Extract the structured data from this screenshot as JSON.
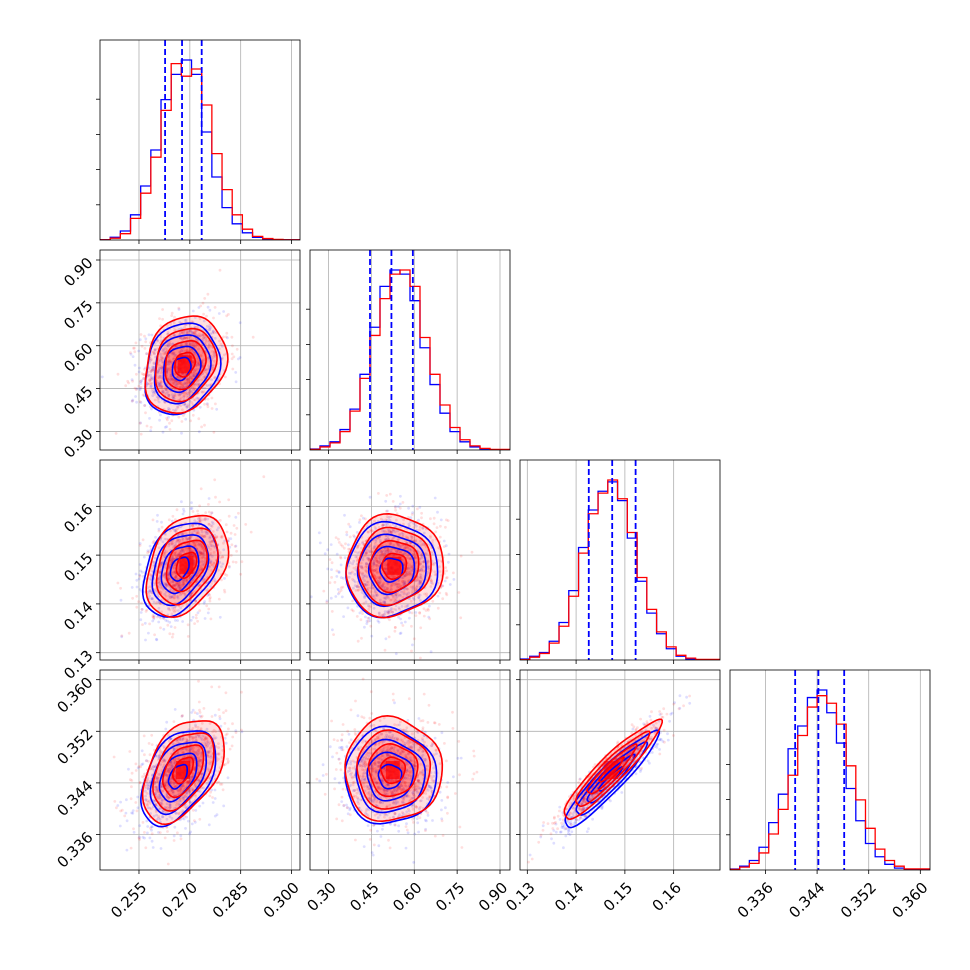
{
  "colors": {
    "series_a": "#0000ff",
    "series_b": "#ff0000",
    "grid": "#b0b0b0",
    "frame": "#000000"
  },
  "chart_data": {
    "type": "corner",
    "grid": true,
    "parameters": [
      {
        "ticks": [
          0.255,
          0.27,
          0.285,
          0.3
        ],
        "tick_labels": [
          "0.255",
          "0.270",
          "0.285",
          "0.300"
        ],
        "range": [
          0.2435,
          0.3025
        ],
        "quantiles": [
          0.2627,
          0.2677,
          0.2735
        ],
        "hist": {
          "edges": [
            0.2435,
            0.2465,
            0.2495,
            0.2525,
            0.2555,
            0.2585,
            0.2615,
            0.2645,
            0.2675,
            0.2705,
            0.2735,
            0.2765,
            0.2795,
            0.2825,
            0.2855,
            0.2885,
            0.2915,
            0.2945,
            0.2975,
            0.3025
          ],
          "series_a": [
            0.2,
            1.5,
            5,
            14,
            30,
            50,
            78,
            92,
            100,
            92,
            60,
            35,
            18,
            9,
            4,
            1.5,
            0.5,
            0.2,
            0.1
          ],
          "series_b": [
            0.1,
            1,
            3.5,
            12,
            26,
            46,
            72,
            98,
            91,
            95,
            75,
            48,
            28,
            14,
            6,
            2,
            0.8,
            0.3,
            0.1
          ]
        }
      },
      {
        "ticks": [
          0.3,
          0.45,
          0.6,
          0.75,
          0.9
        ],
        "tick_labels": [
          "0.30",
          "0.45",
          "0.60",
          "0.75",
          "0.90"
        ],
        "range": [
          0.235,
          0.935
        ],
        "quantiles": [
          0.445,
          0.52,
          0.595
        ],
        "hist": {
          "edges": [
            0.235,
            0.27,
            0.305,
            0.34,
            0.375,
            0.41,
            0.445,
            0.48,
            0.515,
            0.55,
            0.585,
            0.62,
            0.655,
            0.69,
            0.725,
            0.76,
            0.795,
            0.83,
            0.865,
            0.935
          ],
          "series_a": [
            0.5,
            2,
            4,
            10,
            20,
            37,
            60,
            80,
            88,
            86,
            73,
            50,
            32,
            18,
            9,
            4,
            1.5,
            0.5,
            0.2
          ],
          "series_b": [
            0.3,
            1.5,
            3.5,
            9,
            19,
            35,
            56,
            74,
            86,
            88,
            80,
            55,
            37,
            22,
            11,
            5,
            2,
            0.8,
            0.3
          ]
        }
      },
      {
        "ticks": [
          0.13,
          0.14,
          0.15,
          0.16
        ],
        "tick_labels": [
          "0.13",
          "0.14",
          "0.15",
          "0.16"
        ],
        "range": [
          0.1285,
          0.1695
        ],
        "quantiles": [
          0.1426,
          0.1474,
          0.1522
        ],
        "hist": {
          "edges": [
            0.1285,
            0.1305,
            0.1325,
            0.1345,
            0.1365,
            0.1385,
            0.1405,
            0.1425,
            0.1445,
            0.1465,
            0.1485,
            0.1505,
            0.1525,
            0.1545,
            0.1565,
            0.1585,
            0.1605,
            0.1625,
            0.1645,
            0.1695
          ],
          "series_a": [
            0.5,
            2,
            4,
            10,
            20,
            37,
            60,
            80,
            90,
            95,
            85,
            65,
            42,
            25,
            14,
            6,
            2,
            0.5,
            0.2
          ],
          "series_b": [
            0.2,
            1.5,
            3.5,
            9,
            18,
            34,
            57,
            78,
            89,
            96,
            86,
            68,
            44,
            27,
            15,
            7,
            2.5,
            1,
            0.3
          ]
        }
      },
      {
        "ticks": [
          0.336,
          0.344,
          0.352,
          0.36
        ],
        "tick_labels": [
          "0.336",
          "0.344",
          "0.352",
          "0.360"
        ],
        "range": [
          0.3305,
          0.3615
        ],
        "quantiles": [
          0.3406,
          0.3442,
          0.3482
        ],
        "hist": {
          "edges": [
            0.3305,
            0.332,
            0.3335,
            0.335,
            0.3365,
            0.338,
            0.3395,
            0.341,
            0.3425,
            0.344,
            0.3455,
            0.347,
            0.3485,
            0.35,
            0.3515,
            0.353,
            0.3545,
            0.356,
            0.3575,
            0.3615
          ],
          "series_a": [
            0.5,
            2,
            5,
            12,
            25,
            40,
            64,
            76,
            91,
            95,
            83,
            67,
            43,
            26,
            14,
            7,
            3,
            1,
            0.3
          ],
          "series_b": [
            0.3,
            1.5,
            3.5,
            9,
            19,
            32,
            50,
            71,
            86,
            92,
            88,
            77,
            55,
            37,
            22,
            11,
            5,
            2,
            0.6
          ]
        }
      }
    ],
    "pairs": [
      {
        "row": 1,
        "col": 0,
        "corr": 0.2,
        "series_a": {
          "center": [
            0.2675,
            0.52
          ],
          "sd": [
            0.0055,
            0.08
          ]
        },
        "series_b": {
          "center": [
            0.2685,
            0.535
          ],
          "sd": [
            0.006,
            0.085
          ]
        }
      },
      {
        "row": 2,
        "col": 0,
        "corr": 0.35,
        "series_a": {
          "center": [
            0.267,
            0.1472
          ],
          "sd": [
            0.0055,
            0.0048
          ]
        },
        "series_b": {
          "center": [
            0.269,
            0.148
          ],
          "sd": [
            0.006,
            0.0052
          ]
        }
      },
      {
        "row": 2,
        "col": 1,
        "corr": 0.05,
        "series_a": {
          "center": [
            0.52,
            0.147
          ],
          "sd": [
            0.08,
            0.0048
          ]
        },
        "series_b": {
          "center": [
            0.53,
            0.1478
          ],
          "sd": [
            0.085,
            0.0052
          ]
        }
      },
      {
        "row": 3,
        "col": 0,
        "corr": 0.45,
        "series_a": {
          "center": [
            0.2665,
            0.345
          ],
          "sd": [
            0.0055,
            0.0037
          ]
        },
        "series_b": {
          "center": [
            0.268,
            0.346
          ],
          "sd": [
            0.006,
            0.004
          ]
        }
      },
      {
        "row": 3,
        "col": 1,
        "corr": 0.0,
        "series_a": {
          "center": [
            0.515,
            0.345
          ],
          "sd": [
            0.08,
            0.0037
          ]
        },
        "series_b": {
          "center": [
            0.525,
            0.346
          ],
          "sd": [
            0.085,
            0.004
          ]
        }
      },
      {
        "row": 3,
        "col": 2,
        "corr": 0.93,
        "series_a": {
          "center": [
            0.147,
            0.3445
          ],
          "sd": [
            0.0048,
            0.0037
          ]
        },
        "series_b": {
          "center": [
            0.1472,
            0.346
          ],
          "sd": [
            0.005,
            0.0038
          ]
        }
      }
    ],
    "contour_levels_sigma": [
      0.5,
      1.0,
      1.5,
      2.0
    ]
  }
}
